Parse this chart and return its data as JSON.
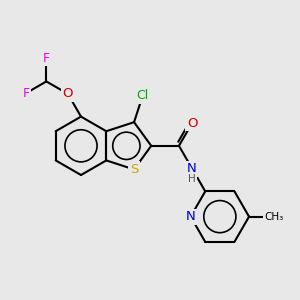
{
  "bg": "#e8e8e8",
  "bond_lw": 1.5,
  "atom_colors": {
    "C": "#000000",
    "N": "#0000cc",
    "O": "#cc0000",
    "S": "#ccaa00",
    "Cl": "#00aa00",
    "F": "#ee00ee",
    "H": "#555555"
  },
  "figsize": [
    3.0,
    3.0
  ],
  "dpi": 100
}
